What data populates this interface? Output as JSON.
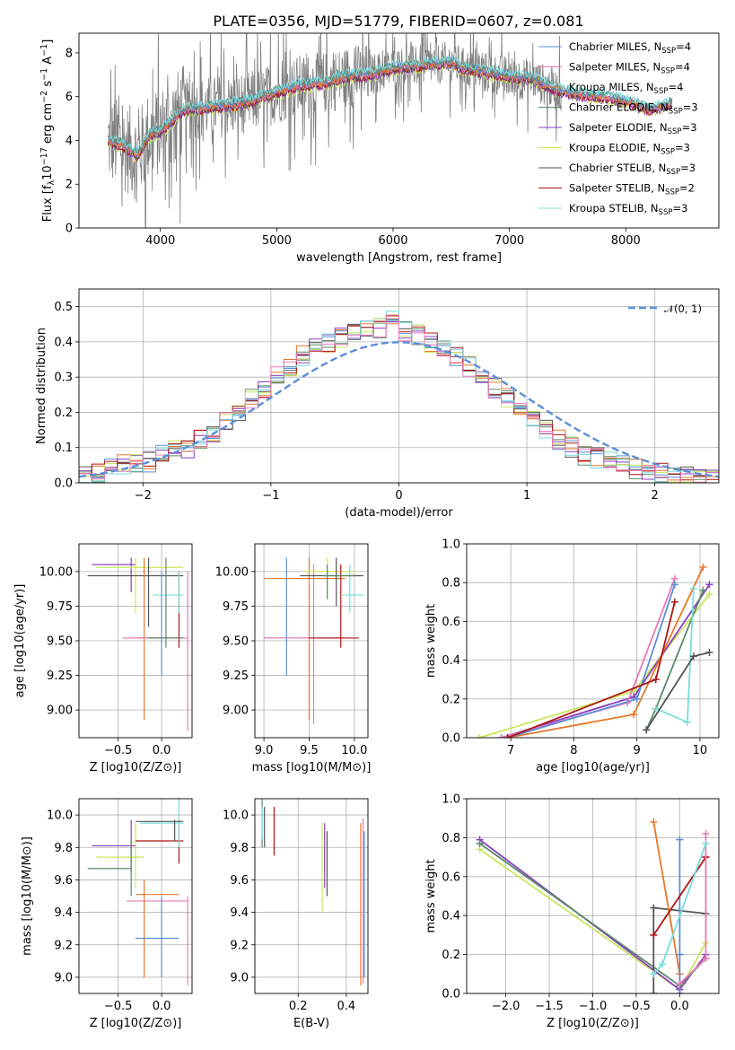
{
  "figure": {
    "title": "PLATE=0356, MJD=51779, FIBERID=0607, z=0.081"
  },
  "colors": {
    "chabrier_miles": "#5b8fd9",
    "salpeter_miles": "#e8782a",
    "kroupa_miles": "#e8782a",
    "chabrier_elodie": "#5a8a6a",
    "salpeter_elodie": "#8a3fc0",
    "kroupa_elodie": "#c8e85a",
    "chabrier_stelib": "#555555",
    "salpeter_stelib": "#b01515",
    "kroupa_stelib": "#7adcdc",
    "pink": "#e87ab8",
    "data": "#808080",
    "normal": "#5b8fd9",
    "grid": "#b0b0b0"
  },
  "chart_data": [
    {
      "id": "spectrum",
      "type": "line",
      "title": "PLATE=0356, MJD=51779, FIBERID=0607, z=0.081",
      "xlabel": "wavelength [Angstrom, rest frame]",
      "ylabel_parts": [
        "Flux [f",
        "λ",
        "10",
        "−17",
        " erg cm",
        "−2",
        " s",
        "−1",
        " A",
        "−1",
        "]"
      ],
      "xlim": [
        3300,
        8800
      ],
      "ylim": [
        0,
        8.9
      ],
      "xticks": [
        4000,
        5000,
        6000,
        7000,
        8000
      ],
      "yticks": [
        0,
        2,
        4,
        6,
        8
      ],
      "legend_position": "upper-right",
      "legend": [
        {
          "name": "Chabrier MILES, N",
          "sub": "SSP",
          "val": "=4",
          "color": "#5b8fd9"
        },
        {
          "name": "Salpeter MILES, N",
          "sub": "SSP",
          "val": "=4",
          "color": "#e87ab8"
        },
        {
          "name": "Kroupa MILES, N",
          "sub": "SSP",
          "val": "=4",
          "color": "#e8782a"
        },
        {
          "name": "Chabrier ELODIE, N",
          "sub": "SSP",
          "val": "=3",
          "color": "#5a8a6a"
        },
        {
          "name": "Salpeter ELODIE, N",
          "sub": "SSP",
          "val": "=3",
          "color": "#8a3fc0"
        },
        {
          "name": "Kroupa ELODIE, N",
          "sub": "SSP",
          "val": "=3",
          "color": "#c8e85a"
        },
        {
          "name": "Chabrier STELIB, N",
          "sub": "SSP",
          "val": "=3",
          "color": "#555555"
        },
        {
          "name": "Salpeter STELIB, N",
          "sub": "SSP",
          "val": "=2",
          "color": "#b01515"
        },
        {
          "name": "Kroupa STELIB, N",
          "sub": "SSP",
          "val": "=3",
          "color": "#7adcdc"
        }
      ],
      "model_curve": {
        "x": [
          3550,
          3700,
          3800,
          3900,
          4000,
          4100,
          4200,
          4400,
          4600,
          4800,
          5000,
          5200,
          5400,
          5600,
          5800,
          6000,
          6200,
          6400,
          6500,
          6600,
          6800,
          7000,
          7200,
          7400,
          7600,
          7800,
          8000,
          8200,
          8400
        ],
        "y": [
          4.0,
          3.7,
          3.3,
          4.2,
          4.4,
          4.9,
          5.4,
          5.5,
          5.6,
          5.8,
          6.2,
          6.5,
          6.6,
          6.9,
          7.0,
          7.3,
          7.4,
          7.5,
          7.6,
          7.3,
          7.1,
          6.9,
          6.8,
          6.3,
          6.1,
          6.0,
          5.8,
          5.4,
          5.7
        ]
      }
    },
    {
      "id": "residuals",
      "type": "histogram",
      "xlabel": "(data-model)/error",
      "ylabel": "Normed distribution",
      "xlim": [
        -2.5,
        2.5
      ],
      "ylim": [
        0,
        0.55
      ],
      "xticks": [
        -2,
        -1,
        0,
        1,
        2
      ],
      "yticks": [
        0.0,
        0.1,
        0.2,
        0.3,
        0.4,
        0.5
      ],
      "xtick_labels": [
        "−2",
        "−1",
        "0",
        "1",
        "2"
      ],
      "ytick_labels": [
        "0.0",
        "0.1",
        "0.2",
        "0.3",
        "0.4",
        "0.5"
      ],
      "legend_position": "upper-right",
      "legend": [
        {
          "name": "𝒩(0, 1)",
          "color": "#5b8fd9"
        }
      ],
      "bin_edges_start": -2.5,
      "bin_width": 0.1,
      "base_values": [
        0.02,
        0.03,
        0.04,
        0.05,
        0.06,
        0.06,
        0.08,
        0.09,
        0.1,
        0.12,
        0.14,
        0.17,
        0.2,
        0.24,
        0.27,
        0.3,
        0.33,
        0.36,
        0.38,
        0.4,
        0.41,
        0.42,
        0.43,
        0.44,
        0.46,
        0.43,
        0.42,
        0.4,
        0.38,
        0.36,
        0.33,
        0.3,
        0.27,
        0.24,
        0.21,
        0.18,
        0.15,
        0.12,
        0.1,
        0.08,
        0.07,
        0.06,
        0.05,
        0.04,
        0.03,
        0.03,
        0.02,
        0.02,
        0.02,
        0.01
      ]
    },
    {
      "id": "age_vs_Z",
      "type": "scatter",
      "xlabel": "Z [log10(Z/Z⊙)]",
      "ylabel": "age  [log10(age/yr)]",
      "xlim": [
        -0.95,
        0.35
      ],
      "ylim": [
        8.8,
        10.2
      ],
      "xticks": [
        -0.5,
        0.0
      ],
      "xtick_labels": [
        "−0.5",
        "0.0"
      ],
      "yticks": [
        9.0,
        9.25,
        9.5,
        9.75,
        10.0
      ],
      "ytick_labels": [
        "9.00",
        "9.25",
        "9.50",
        "9.75",
        "10.00"
      ],
      "crosses": [
        {
          "x": -0.35,
          "y": 10.05,
          "x0": -0.8,
          "x1": -0.3,
          "y0": 9.85,
          "y1": 10.1,
          "color": "#8a3fc0"
        },
        {
          "x": -0.3,
          "y": 10.03,
          "x0": -0.75,
          "x1": 0.25,
          "y0": 9.7,
          "y1": 10.1,
          "color": "#c8e85a"
        },
        {
          "x": -0.15,
          "y": 9.97,
          "x0": -0.85,
          "x1": 0.25,
          "y0": 9.6,
          "y1": 10.1,
          "color": "#555555"
        },
        {
          "x": 0.2,
          "y": 9.52,
          "x0": -0.25,
          "x1": 0.25,
          "y0": 9.45,
          "y1": 10.0,
          "color": "#b01515"
        },
        {
          "x": 0.2,
          "y": 9.83,
          "x0": -0.1,
          "x1": 0.25,
          "y0": 9.7,
          "y1": 10.0,
          "color": "#7adcdc"
        },
        {
          "x": 0.0,
          "y": 9.52,
          "x0": -0.3,
          "x1": 0.2,
          "y0": 9.25,
          "y1": 10.0,
          "color": "#5b8fd9"
        },
        {
          "x": -0.2,
          "y": 9.52,
          "x0": -0.4,
          "x1": 0.1,
          "y0": 8.93,
          "y1": 10.1,
          "color": "#e8782a"
        },
        {
          "x": 0.3,
          "y": 9.52,
          "x0": -0.45,
          "x1": 0.3,
          "y0": 8.85,
          "y1": 10.0,
          "color": "#e87ab8"
        },
        {
          "x": 0.05,
          "y": 9.52,
          "x0": -0.15,
          "x1": 0.25,
          "y0": 9.45,
          "y1": 10.1,
          "color": "#5a8a6a"
        }
      ]
    },
    {
      "id": "age_vs_mass",
      "type": "scatter",
      "xlabel": "mass [log10(M/M⊙)]",
      "ylabel": "",
      "xlim": [
        8.9,
        10.15
      ],
      "ylim": [
        8.8,
        10.2
      ],
      "xticks": [
        9.0,
        9.5,
        10.0
      ],
      "xtick_labels": [
        "9.0",
        "9.5",
        "10.0"
      ],
      "yticks": [
        9.0,
        9.25,
        9.5,
        9.75,
        10.0
      ],
      "ytick_labels": [
        "9.00",
        "9.25",
        "9.50",
        "9.75",
        "10.00"
      ],
      "crosses": [
        {
          "x": 9.25,
          "y": 9.52,
          "x0": 9.0,
          "x1": 9.9,
          "y0": 9.25,
          "y1": 10.1,
          "color": "#5b8fd9"
        },
        {
          "x": 9.5,
          "y": 9.95,
          "x0": 9.0,
          "x1": 9.9,
          "y0": 8.93,
          "y1": 10.1,
          "color": "#e8782a"
        },
        {
          "x": 9.55,
          "y": 9.52,
          "x0": 9.0,
          "x1": 9.9,
          "y0": 8.9,
          "y1": 10.05,
          "color": "#e87ab8"
        },
        {
          "x": 9.7,
          "y": 10.0,
          "x0": 9.45,
          "x1": 10.0,
          "y0": 9.8,
          "y1": 10.1,
          "color": "#c8e85a"
        },
        {
          "x": 9.85,
          "y": 9.52,
          "x0": 9.5,
          "x1": 10.05,
          "y0": 9.45,
          "y1": 10.05,
          "color": "#b01515"
        },
        {
          "x": 9.95,
          "y": 9.83,
          "x0": 9.85,
          "x1": 10.1,
          "y0": 9.7,
          "y1": 10.05,
          "color": "#7adcdc"
        },
        {
          "x": 9.8,
          "y": 9.97,
          "x0": 9.4,
          "x1": 10.1,
          "y0": 9.75,
          "y1": 10.1,
          "color": "#555555"
        },
        {
          "x": 9.7,
          "y": 9.97,
          "x0": 9.65,
          "x1": 10.0,
          "y0": 9.8,
          "y1": 10.05,
          "color": "#5a8a6a"
        }
      ]
    },
    {
      "id": "massweight_vs_age",
      "type": "line",
      "xlabel": "age  [log10(age/yr)]",
      "ylabel": "mass weight",
      "xlim": [
        6.3,
        10.3
      ],
      "ylim": [
        0.0,
        1.0
      ],
      "xticks": [
        7,
        8,
        9,
        10
      ],
      "xtick_labels": [
        "7",
        "8",
        "9",
        "10"
      ],
      "yticks": [
        0.0,
        0.2,
        0.4,
        0.6,
        0.8,
        1.0
      ],
      "ytick_labels": [
        "0.0",
        "0.2",
        "0.4",
        "0.6",
        "0.8",
        "1.0"
      ],
      "series": [
        {
          "color": "#c8e85a",
          "x": [
            6.5,
            8.95,
            10.15
          ],
          "y": [
            0.0,
            0.24,
            0.74
          ]
        },
        {
          "color": "#8a3fc0",
          "x": [
            6.85,
            8.95,
            10.15
          ],
          "y": [
            0.0,
            0.21,
            0.79
          ]
        },
        {
          "color": "#e8782a",
          "x": [
            6.95,
            8.95,
            10.05
          ],
          "y": [
            0.0,
            0.12,
            0.88
          ]
        },
        {
          "color": "#e87ab8",
          "x": [
            6.85,
            8.85,
            9.6
          ],
          "y": [
            0.0,
            0.18,
            0.82
          ]
        },
        {
          "color": "#5b8fd9",
          "x": [
            6.95,
            9.0,
            9.6
          ],
          "y": [
            0.0,
            0.2,
            0.79
          ]
        },
        {
          "color": "#b01515",
          "x": [
            6.95,
            9.3,
            9.6
          ],
          "y": [
            0.0,
            0.3,
            0.7
          ]
        },
        {
          "color": "#5a8a6a",
          "x": [
            9.15,
            9.3,
            10.05
          ],
          "y": [
            0.04,
            0.15,
            0.76
          ]
        },
        {
          "color": "#7adcdc",
          "x": [
            9.3,
            9.8,
            9.9
          ],
          "y": [
            0.15,
            0.08,
            0.77
          ]
        },
        {
          "color": "#555555",
          "x": [
            9.15,
            9.9,
            10.15
          ],
          "y": [
            0.04,
            0.42,
            0.44
          ]
        }
      ]
    },
    {
      "id": "mass_vs_Z",
      "type": "scatter",
      "xlabel": "Z [log10(Z/Z⊙)]",
      "ylabel": "mass [log10(M/M⊙)]",
      "xlim": [
        -0.95,
        0.35
      ],
      "ylim": [
        8.9,
        10.1
      ],
      "xticks": [
        -0.5,
        0.0
      ],
      "xtick_labels": [
        "−0.5",
        "0.0"
      ],
      "yticks": [
        9.0,
        9.2,
        9.4,
        9.6,
        9.8,
        10.0
      ],
      "ytick_labels": [
        "9.0",
        "9.2",
        "9.4",
        "9.6",
        "9.8",
        "10.0"
      ],
      "crosses": [
        {
          "x": -0.35,
          "y": 9.81,
          "x0": -0.8,
          "x1": -0.3,
          "y0": 9.65,
          "y1": 9.97,
          "color": "#8a3fc0"
        },
        {
          "x": -0.3,
          "y": 9.74,
          "x0": -0.75,
          "x1": -0.2,
          "y0": 9.55,
          "y1": 9.95,
          "color": "#c8e85a"
        },
        {
          "x": -0.35,
          "y": 9.67,
          "x0": -0.85,
          "x1": -0.35,
          "y0": 9.5,
          "y1": 9.85,
          "color": "#5a8a6a"
        },
        {
          "x": 0.2,
          "y": 9.84,
          "x0": -0.3,
          "x1": 0.25,
          "y0": 9.7,
          "y1": 9.97,
          "color": "#b01515"
        },
        {
          "x": 0.2,
          "y": 9.95,
          "x0": -0.25,
          "x1": 0.25,
          "y0": 9.8,
          "y1": 10.1,
          "color": "#7adcdc"
        },
        {
          "x": 0.15,
          "y": 9.96,
          "x0": -0.3,
          "x1": 0.25,
          "y0": 9.84,
          "y1": 9.97,
          "color": "#555555"
        },
        {
          "x": -0.2,
          "y": 9.51,
          "x0": -0.3,
          "x1": 0.2,
          "y0": 9.0,
          "y1": 9.6,
          "color": "#e8782a"
        },
        {
          "x": 0.3,
          "y": 9.47,
          "x0": -0.4,
          "x1": 0.3,
          "y0": 8.95,
          "y1": 9.5,
          "color": "#e87ab8"
        },
        {
          "x": 0.0,
          "y": 9.24,
          "x0": -0.3,
          "x1": 0.2,
          "y0": 9.0,
          "y1": 9.5,
          "color": "#5b8fd9"
        }
      ]
    },
    {
      "id": "mass_vs_ebv",
      "type": "scatter",
      "xlabel": "E(B-V)",
      "ylabel": "",
      "xlim": [
        0.02,
        0.49
      ],
      "ylim": [
        8.9,
        10.1
      ],
      "xticks": [
        0.2,
        0.4
      ],
      "xtick_labels": [
        "0.2",
        "0.4"
      ],
      "yticks": [
        9.0,
        9.2,
        9.4,
        9.6,
        9.8,
        10.0
      ],
      "ytick_labels": [
        "9.0",
        "9.2",
        "9.4",
        "9.6",
        "9.8",
        "10.0"
      ],
      "bars": [
        {
          "x": 0.05,
          "y0": 9.8,
          "y1": 10.1,
          "color": "#5a8a6a"
        },
        {
          "x": 0.05,
          "y0": 9.85,
          "y1": 10.05,
          "color": "#7adcdc"
        },
        {
          "x": 0.06,
          "y0": 9.8,
          "y1": 10.05,
          "color": "#555555"
        },
        {
          "x": 0.1,
          "y0": 9.75,
          "y1": 10.05,
          "color": "#b01515"
        },
        {
          "x": 0.3,
          "y0": 9.4,
          "y1": 9.95,
          "color": "#c8e85a"
        },
        {
          "x": 0.31,
          "y0": 9.55,
          "y1": 9.95,
          "color": "#8a3fc0"
        },
        {
          "x": 0.32,
          "y0": 9.5,
          "y1": 9.9,
          "color": "#555555"
        },
        {
          "x": 0.46,
          "y0": 8.95,
          "y1": 9.95,
          "color": "#e8782a"
        },
        {
          "x": 0.47,
          "y0": 8.96,
          "y1": 9.98,
          "color": "#e87ab8"
        },
        {
          "x": 0.475,
          "y0": 9.0,
          "y1": 9.9,
          "color": "#5b8fd9"
        }
      ]
    },
    {
      "id": "massweight_vs_Z",
      "type": "line",
      "xlabel": "Z [log10(Z/Z⊙)]",
      "ylabel": "mass weight",
      "xlim": [
        -2.45,
        0.45
      ],
      "ylim": [
        0.0,
        1.0
      ],
      "xticks": [
        -2.0,
        -1.5,
        -1.0,
        -0.5,
        0.0
      ],
      "xtick_labels": [
        "−2.0",
        "−1.5",
        "−1.0",
        "−0.5",
        "0.0"
      ],
      "yticks": [
        0.0,
        0.2,
        0.4,
        0.6,
        0.8,
        1.0
      ],
      "ytick_labels": [
        "0.0",
        "0.2",
        "0.4",
        "0.6",
        "0.8",
        "1.0"
      ],
      "series": [
        {
          "color": "#c8e85a",
          "x": [
            -2.3,
            0.0,
            0.3
          ],
          "y": [
            0.74,
            0.02,
            0.26
          ]
        },
        {
          "color": "#8a3fc0",
          "x": [
            -2.3,
            0.0,
            0.3
          ],
          "y": [
            0.79,
            0.02,
            0.2
          ]
        },
        {
          "color": "#5a8a6a",
          "x": [
            -2.3,
            0.0,
            0.3
          ],
          "y": [
            0.77,
            0.04,
            0.18
          ]
        },
        {
          "color": "#555555",
          "x": [
            -0.3,
            -0.3,
            0.3
          ],
          "y": [
            0.0,
            0.44,
            0.41
          ]
        },
        {
          "color": "#e8782a",
          "x": [
            -0.3,
            0.0,
            0.0
          ],
          "y": [
            0.88,
            0.1,
            0.0
          ]
        },
        {
          "color": "#5b8fd9",
          "x": [
            0.0,
            0.0,
            0.0
          ],
          "y": [
            0.79,
            0.2,
            0.0
          ]
        },
        {
          "color": "#b01515",
          "x": [
            -0.3,
            0.3,
            0.3
          ],
          "y": [
            0.3,
            0.7,
            0.7
          ]
        },
        {
          "color": "#e87ab8",
          "x": [
            0.3,
            0.3,
            0.0
          ],
          "y": [
            0.82,
            0.18,
            0.05
          ]
        },
        {
          "color": "#7adcdc",
          "x": [
            -0.3,
            -0.2,
            0.3
          ],
          "y": [
            0.1,
            0.15,
            0.77
          ]
        }
      ]
    }
  ]
}
